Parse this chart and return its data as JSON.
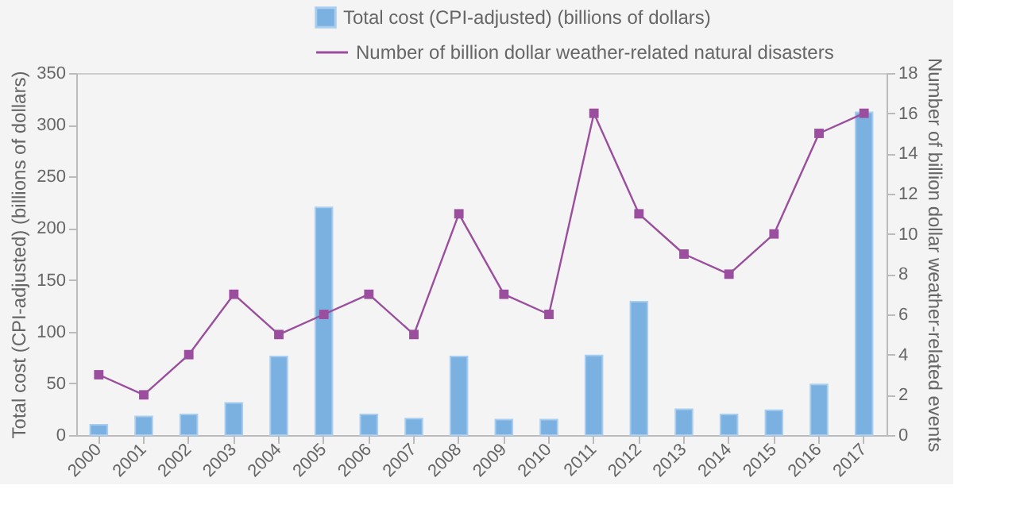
{
  "chart_data": {
    "type": "bar",
    "categories": [
      "2000",
      "2001",
      "2002",
      "2003",
      "2004",
      "2005",
      "2006",
      "2007",
      "2008",
      "2009",
      "2010",
      "2011",
      "2012",
      "2013",
      "2014",
      "2015",
      "2016",
      "2017"
    ],
    "ylabel": "Total cost (CPI-adjusted) (billions of dollars)",
    "y2label": "Number of billion dollar weather-related events",
    "ylim": [
      0,
      350
    ],
    "yticks": [
      0,
      50,
      100,
      150,
      200,
      250,
      300,
      350
    ],
    "y2lim": [
      0,
      18
    ],
    "y2ticks": [
      0,
      2,
      4,
      6,
      8,
      10,
      12,
      14,
      16,
      18
    ],
    "series": [
      {
        "name": "Total cost (CPI-adjusted) (billions of dollars)",
        "color": "#7ab1e0",
        "values": [
          10,
          18,
          20,
          31,
          76,
          220,
          20,
          16,
          76,
          15,
          15,
          77,
          129,
          25,
          20,
          24,
          49,
          312
        ]
      },
      {
        "name": "Number of billion dollar weather-related natural disasters",
        "type": "line",
        "axis": "y2",
        "color": "#9b4d9e",
        "marker": "square",
        "line_style": "solid",
        "values": [
          3,
          2,
          4,
          7,
          5,
          6,
          7,
          5,
          11,
          7,
          6,
          16,
          11,
          9,
          8,
          10,
          15,
          16
        ]
      }
    ],
    "legend": "top",
    "grid": false
  }
}
